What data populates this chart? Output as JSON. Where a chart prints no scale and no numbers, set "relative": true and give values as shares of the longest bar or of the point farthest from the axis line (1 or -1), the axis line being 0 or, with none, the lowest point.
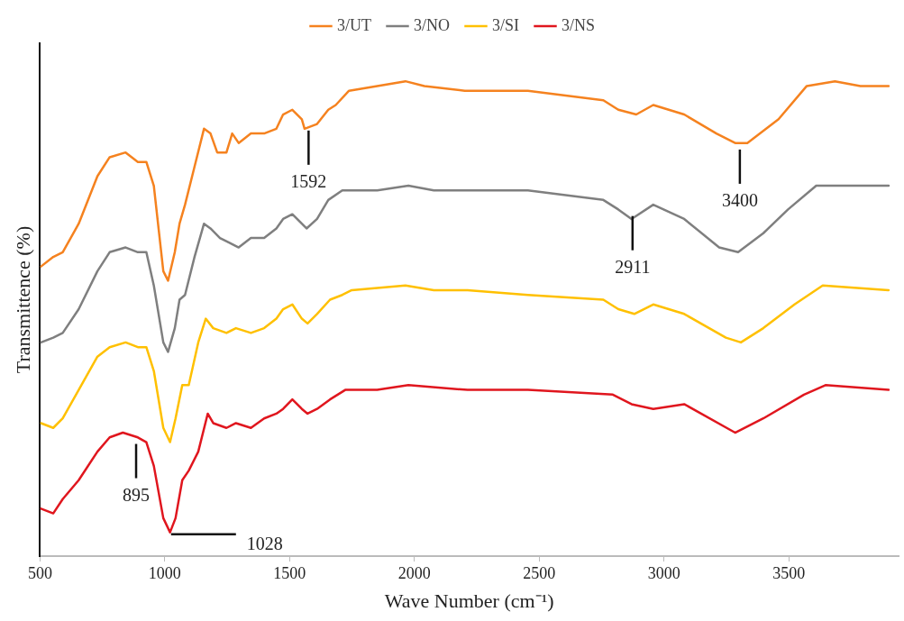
{
  "chart_data": {
    "type": "line",
    "xlabel": "Wave Number (cm⁻¹)",
    "ylabel": "Transmittence (%)",
    "relative": true,
    "legend": "top",
    "grid": false,
    "marker": "none",
    "line_style": "solid",
    "xlim": [
      500,
      3940
    ],
    "xticks": [
      500,
      1000,
      1500,
      2000,
      2500,
      3000,
      3500
    ],
    "series": [
      {
        "name": "3/UT",
        "color": "#f5821f",
        "x": [
          504,
          553,
          591,
          655,
          730,
          779,
          843,
          892,
          926,
          956,
          994,
          1013,
          1040,
          1059,
          1081,
          1119,
          1157,
          1183,
          1210,
          1247,
          1270,
          1296,
          1345,
          1398,
          1447,
          1474,
          1511,
          1549,
          1560,
          1610,
          1655,
          1685,
          1738,
          1851,
          1964,
          2040,
          2202,
          2455,
          2757,
          2817,
          2889,
          2957,
          3081,
          3210,
          3285,
          3334,
          3459,
          3572,
          3685,
          3787,
          3900
        ],
        "values": [
          0.61,
          0.63,
          0.64,
          0.7,
          0.8,
          0.84,
          0.85,
          0.83,
          0.83,
          0.78,
          0.6,
          0.58,
          0.64,
          0.7,
          0.74,
          0.82,
          0.9,
          0.89,
          0.85,
          0.85,
          0.89,
          0.87,
          0.89,
          0.89,
          0.9,
          0.93,
          0.94,
          0.92,
          0.9,
          0.91,
          0.94,
          0.95,
          0.98,
          0.99,
          1.0,
          0.99,
          0.98,
          0.98,
          0.96,
          0.94,
          0.93,
          0.95,
          0.93,
          0.89,
          0.87,
          0.87,
          0.92,
          0.99,
          1.0,
          0.99,
          0.99
        ]
      },
      {
        "name": "3/NO",
        "color": "#7f7f7f",
        "x": [
          504,
          553,
          591,
          655,
          730,
          779,
          843,
          892,
          926,
          956,
          994,
          1013,
          1040,
          1059,
          1081,
          1119,
          1157,
          1183,
          1221,
          1259,
          1296,
          1345,
          1398,
          1447,
          1474,
          1511,
          1549,
          1568,
          1610,
          1655,
          1711,
          1851,
          1976,
          2078,
          2213,
          2455,
          2757,
          2817,
          2870,
          2957,
          3081,
          3221,
          3297,
          3398,
          3497,
          3610,
          3663,
          3900
        ],
        "values": [
          0.45,
          0.46,
          0.47,
          0.52,
          0.6,
          0.64,
          0.65,
          0.64,
          0.64,
          0.57,
          0.45,
          0.43,
          0.48,
          0.54,
          0.55,
          0.63,
          0.7,
          0.69,
          0.67,
          0.66,
          0.65,
          0.67,
          0.67,
          0.69,
          0.71,
          0.72,
          0.7,
          0.69,
          0.71,
          0.75,
          0.77,
          0.77,
          0.78,
          0.77,
          0.77,
          0.77,
          0.75,
          0.73,
          0.71,
          0.74,
          0.71,
          0.65,
          0.64,
          0.68,
          0.73,
          0.78,
          0.78,
          0.78
        ]
      },
      {
        "name": "3/SI",
        "color": "#ffc000",
        "x": [
          504,
          553,
          591,
          655,
          730,
          779,
          843,
          892,
          926,
          956,
          994,
          1021,
          1043,
          1070,
          1096,
          1134,
          1164,
          1194,
          1247,
          1285,
          1345,
          1398,
          1447,
          1474,
          1511,
          1549,
          1572,
          1610,
          1662,
          1711,
          1749,
          1964,
          2078,
          2213,
          2455,
          2757,
          2817,
          2881,
          2957,
          3081,
          3248,
          3308,
          3398,
          3523,
          3636,
          3900
        ],
        "values": [
          0.28,
          0.27,
          0.29,
          0.35,
          0.42,
          0.44,
          0.45,
          0.44,
          0.44,
          0.39,
          0.27,
          0.24,
          0.29,
          0.36,
          0.36,
          0.45,
          0.5,
          0.48,
          0.47,
          0.48,
          0.47,
          0.48,
          0.5,
          0.52,
          0.53,
          0.5,
          0.49,
          0.51,
          0.54,
          0.55,
          0.56,
          0.57,
          0.56,
          0.56,
          0.55,
          0.54,
          0.52,
          0.51,
          0.53,
          0.51,
          0.46,
          0.45,
          0.48,
          0.53,
          0.57,
          0.56
        ]
      },
      {
        "name": "3/NS",
        "color": "#e0161e",
        "x": [
          504,
          553,
          591,
          655,
          730,
          779,
          832,
          892,
          926,
          956,
          994,
          1021,
          1043,
          1070,
          1096,
          1134,
          1172,
          1194,
          1247,
          1285,
          1345,
          1398,
          1447,
          1474,
          1511,
          1549,
          1572,
          1610,
          1662,
          1723,
          1851,
          1976,
          2213,
          2455,
          2795,
          2870,
          2957,
          3081,
          3285,
          3398,
          3561,
          3647,
          3900
        ],
        "values": [
          0.1,
          0.09,
          0.12,
          0.16,
          0.22,
          0.25,
          0.26,
          0.25,
          0.24,
          0.19,
          0.08,
          0.05,
          0.08,
          0.16,
          0.18,
          0.22,
          0.3,
          0.28,
          0.27,
          0.28,
          0.27,
          0.29,
          0.3,
          0.31,
          0.33,
          0.31,
          0.3,
          0.31,
          0.33,
          0.35,
          0.35,
          0.36,
          0.35,
          0.35,
          0.34,
          0.32,
          0.31,
          0.32,
          0.26,
          0.29,
          0.34,
          0.36,
          0.35
        ]
      }
    ],
    "annotations": [
      {
        "text": "895",
        "x": 885,
        "y": 0.24
      },
      {
        "text": "1028",
        "x": 1025,
        "y": 0.05
      },
      {
        "text": "1592",
        "x": 1576,
        "y": 0.9
      },
      {
        "text": "2911",
        "x": 2874,
        "y": 0.72
      },
      {
        "text": "3400",
        "x": 3304,
        "y": 0.86
      }
    ]
  }
}
